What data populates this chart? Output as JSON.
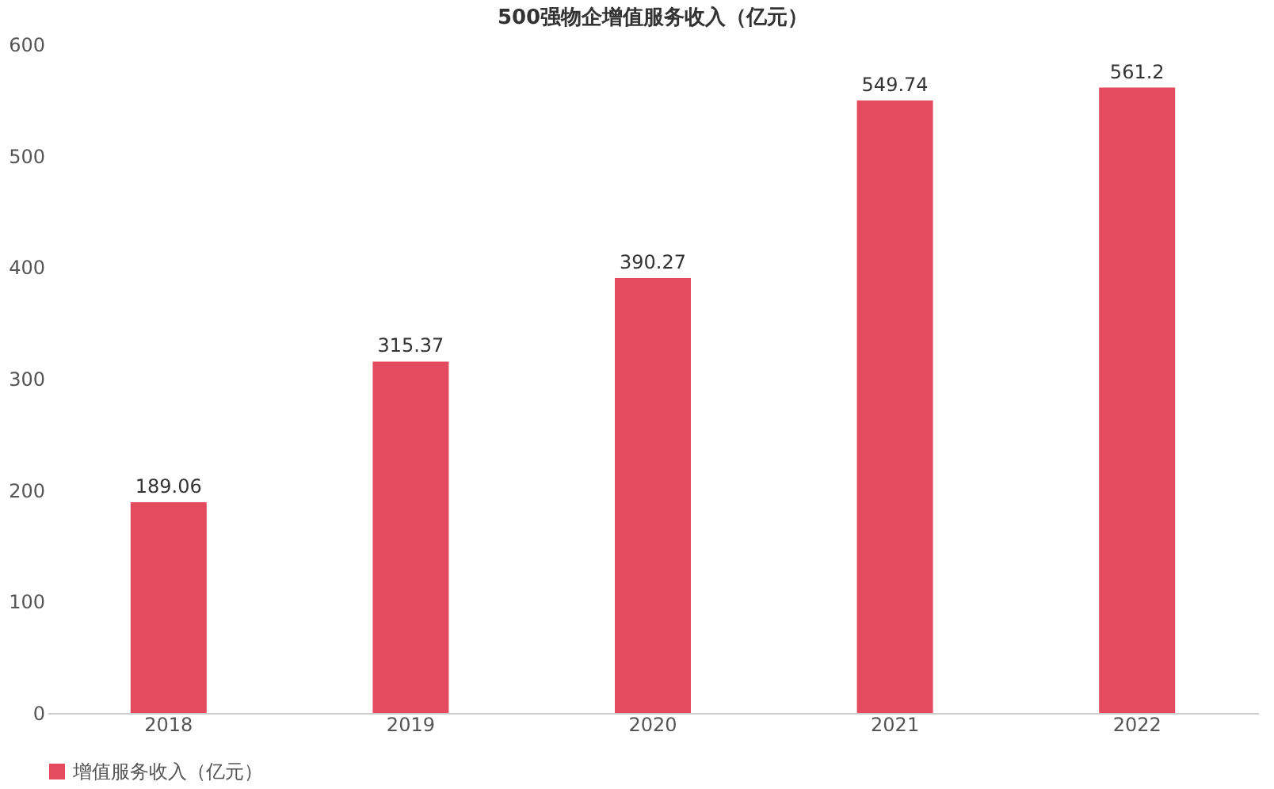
{
  "chart_data": {
    "type": "bar",
    "title": "500强物企增值服务收入（亿元）",
    "categories": [
      "2018",
      "2019",
      "2020",
      "2021",
      "2022"
    ],
    "series": [
      {
        "name": "增值服务收入（亿元）",
        "color": "#e54b5e",
        "values": [
          189.06,
          315.37,
          390.27,
          549.74,
          561.2
        ]
      }
    ],
    "ylim": [
      0,
      600
    ],
    "yticks": [
      0,
      100,
      200,
      300,
      400,
      500,
      600
    ],
    "grid": false,
    "legend": "bottom",
    "data_labels": true
  }
}
